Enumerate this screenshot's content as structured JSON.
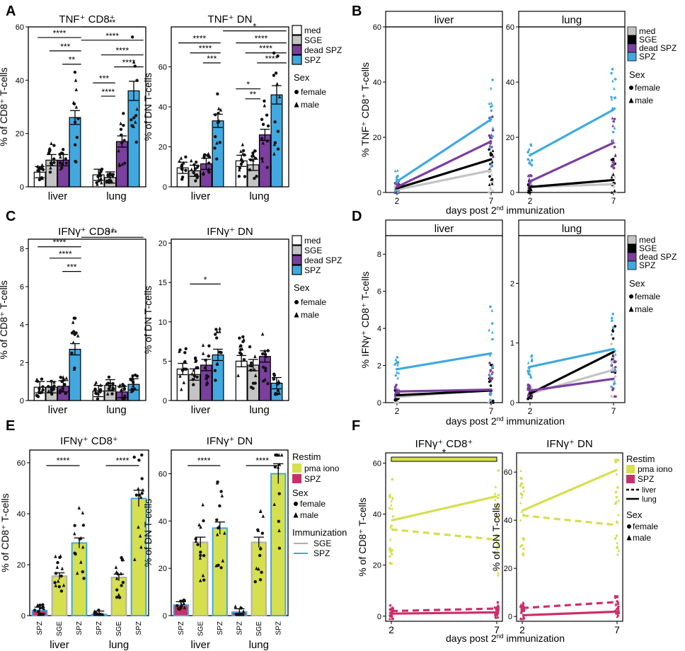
{
  "panel_letters": [
    "A",
    "B",
    "C",
    "D",
    "E",
    "F"
  ],
  "legend_groups": {
    "groups_title": "",
    "group_labels": [
      "med",
      "SGE",
      "dead SPZ",
      "SPZ"
    ],
    "group_colors": [
      "#ffffff",
      "#c4c4c4",
      "#7b3f9e",
      "#41a9e0"
    ],
    "line_colors": [
      "#c4c4c4",
      "#000000",
      "#7b3f9e",
      "#41a9e0"
    ],
    "sex_title": "Sex",
    "sex_labels": [
      "female",
      "male"
    ],
    "restim_title": "Restim",
    "restim_labels": [
      "pma iono",
      "SPZ"
    ],
    "restim_colors": [
      "#d6df4e",
      "#cc2e6b"
    ],
    "immunization_title": "Immunization",
    "immunization_labels": [
      "SGE",
      "SPZ"
    ],
    "immunization_colors": [
      "#b0b0b0",
      "#41a9e0"
    ],
    "organ_line_labels": [
      "liver",
      "lung"
    ]
  },
  "x_axis_common": {
    "tissues": [
      "liver",
      "lung"
    ],
    "days_label": "days post 2nd immunization",
    "days_label_parts": [
      "days post 2",
      "nd",
      " immunization"
    ],
    "days": [
      "2",
      "7"
    ],
    "e_categories": [
      "SPZ",
      "SGE",
      "SPZ",
      "SPZ",
      "SGE",
      "SPZ"
    ]
  },
  "chart_data": [
    {
      "panel": "A",
      "type": "bar",
      "title": "TNF⁺ CD8⁺",
      "ylabel": "% of CD8⁺ T-cells",
      "ylim": [
        0,
        60
      ],
      "yticks": [
        0,
        20,
        40,
        60
      ],
      "categories": [
        "liver",
        "lung"
      ],
      "series": [
        {
          "name": "med",
          "values": [
            5.5,
            4.5
          ]
        },
        {
          "name": "SGE",
          "values": [
            10,
            3.5
          ]
        },
        {
          "name": "dead SPZ",
          "values": [
            10,
            17
          ]
        },
        {
          "name": "SPZ",
          "values": [
            26,
            36
          ]
        }
      ],
      "significance": [
        "****",
        "***",
        "**",
        "**",
        "****",
        "****",
        "****",
        "***",
        "****"
      ]
    },
    {
      "panel": "A",
      "type": "bar",
      "title": "TNF⁺ DN",
      "ylabel": "% of DN T-cells",
      "ylim": [
        0,
        80
      ],
      "yticks": [
        0,
        20,
        40,
        60
      ],
      "categories": [
        "liver",
        "lung"
      ],
      "series": [
        {
          "name": "med",
          "values": [
            9.5,
            13
          ]
        },
        {
          "name": "SGE",
          "values": [
            8,
            11
          ]
        },
        {
          "name": "dead SPZ",
          "values": [
            11.5,
            26
          ]
        },
        {
          "name": "SPZ",
          "values": [
            33,
            46
          ]
        }
      ],
      "significance": [
        "****",
        "****",
        "***",
        "*",
        "****",
        "****",
        "****",
        "*",
        "**"
      ]
    },
    {
      "panel": "B",
      "type": "line",
      "facets": [
        "liver",
        "lung"
      ],
      "ylabel": "% TNF⁺ CD8⁺ T-cells",
      "ylim": [
        0,
        60
      ],
      "yticks": [
        0,
        20,
        40,
        60
      ],
      "x": [
        2,
        7
      ],
      "xlabel": "days post 2nd immunization",
      "facet_series": [
        [
          {
            "name": "med",
            "values": [
              1,
              8
            ]
          },
          {
            "name": "SGE",
            "values": [
              1.5,
              12
            ]
          },
          {
            "name": "dead SPZ",
            "values": [
              2,
              18.5
            ]
          },
          {
            "name": "SPZ",
            "values": [
              4,
              26.5
            ]
          }
        ],
        [
          {
            "name": "med",
            "values": [
              2,
              3
            ]
          },
          {
            "name": "SGE",
            "values": [
              2,
              4.5
            ]
          },
          {
            "name": "dead SPZ",
            "values": [
              4,
              18
            ]
          },
          {
            "name": "SPZ",
            "values": [
              13.5,
              30
            ]
          }
        ]
      ]
    },
    {
      "panel": "C",
      "type": "bar",
      "title": "IFNγ⁺ CD8⁺",
      "ylabel": "% of CD8⁺ T-cells",
      "ylim": [
        0,
        8.5
      ],
      "yticks": [
        0,
        2,
        4,
        6,
        8
      ],
      "categories": [
        "liver",
        "lung"
      ],
      "series": [
        {
          "name": "med",
          "values": [
            0.7,
            0.5
          ]
        },
        {
          "name": "SGE",
          "values": [
            0.7,
            0.8
          ]
        },
        {
          "name": "dead SPZ",
          "values": [
            0.75,
            0.45
          ]
        },
        {
          "name": "SPZ",
          "values": [
            2.7,
            0.85
          ]
        }
      ],
      "significance": [
        "****",
        "****",
        "***",
        "***"
      ]
    },
    {
      "panel": "C",
      "type": "bar",
      "title": "IFNγ⁺ DN",
      "ylabel": "% of DN T-cells",
      "ylim": [
        0,
        20.5
      ],
      "yticks": [
        0,
        5,
        10,
        15,
        20
      ],
      "categories": [
        "liver",
        "lung"
      ],
      "series": [
        {
          "name": "med",
          "values": [
            4,
            5
          ]
        },
        {
          "name": "SGE",
          "values": [
            3.3,
            4.5
          ]
        },
        {
          "name": "dead SPZ",
          "values": [
            4.5,
            5.6
          ]
        },
        {
          "name": "SPZ",
          "values": [
            5.8,
            2.2
          ]
        }
      ],
      "significance": [
        "*"
      ]
    },
    {
      "panel": "D",
      "type": "line",
      "facets": [
        "liver",
        "lung"
      ],
      "ylabel": "% IFNγ⁺ CD8⁺ T-cells",
      "x": [
        2,
        7
      ],
      "xlabel": "days post 2nd immunization",
      "facet_ylims": [
        [
          0,
          9
        ],
        [
          0,
          2.8
        ]
      ],
      "facet_yticks": [
        [
          0,
          2,
          4,
          6,
          8
        ],
        [
          0,
          1,
          2
        ]
      ],
      "facet_series": [
        [
          {
            "name": "med",
            "values": [
              0.3,
              0.7
            ]
          },
          {
            "name": "SGE",
            "values": [
              0.4,
              0.65
            ]
          },
          {
            "name": "dead SPZ",
            "values": [
              0.6,
              0.7
            ]
          },
          {
            "name": "SPZ",
            "values": [
              1.8,
              2.65
            ]
          }
        ],
        [
          {
            "name": "med",
            "values": [
              0.15,
              0.55
            ]
          },
          {
            "name": "SGE",
            "values": [
              0.15,
              0.85
            ]
          },
          {
            "name": "dead SPZ",
            "values": [
              0.2,
              0.4
            ]
          },
          {
            "name": "SPZ",
            "values": [
              0.6,
              0.9
            ]
          }
        ]
      ]
    },
    {
      "panel": "E",
      "type": "bar",
      "title": "IFNγ⁺ CD8⁺",
      "ylabel": "% of CD8⁺ T-cells",
      "ylim": [
        0,
        65
      ],
      "yticks": [
        0,
        20,
        40,
        60
      ],
      "categories": [
        "SPZ",
        "SGE",
        "SPZ",
        "SPZ",
        "SGE",
        "SPZ"
      ],
      "tissues": [
        "liver",
        "lung"
      ],
      "restim": [
        "SPZ",
        "pma iono",
        "pma iono",
        "SPZ",
        "pma iono",
        "pma iono"
      ],
      "values": [
        2,
        15.5,
        28.5,
        0.5,
        15,
        46
      ],
      "significance": [
        "****",
        "****"
      ]
    },
    {
      "panel": "E",
      "type": "bar",
      "title": "IFNγ⁺ DN",
      "ylabel": "% of DN T-cells",
      "ylim": [
        0,
        70
      ],
      "yticks": [
        0,
        20,
        40,
        60
      ],
      "categories": [
        "SPZ",
        "SGE",
        "SPZ",
        "SPZ",
        "SGE",
        "SPZ"
      ],
      "tissues": [
        "liver",
        "lung"
      ],
      "restim": [
        "SPZ",
        "pma iono",
        "pma iono",
        "SPZ",
        "pma iono",
        "pma iono"
      ],
      "values": [
        4.5,
        31,
        37,
        1.5,
        31,
        60
      ],
      "significance": [
        "****",
        "****"
      ]
    },
    {
      "panel": "F",
      "type": "line",
      "title": "IFNγ⁺ CD8⁺",
      "ylabel": "% of CD8⁺ T-cells",
      "ylim": [
        -2,
        64
      ],
      "yticks": [
        0,
        20,
        40,
        60
      ],
      "x": [
        2,
        7
      ],
      "xlabel": "days post 2nd immunization",
      "series": [
        {
          "name": "pma iono liver",
          "values": [
            34,
            30
          ]
        },
        {
          "name": "pma iono lung",
          "values": [
            37.5,
            47
          ]
        },
        {
          "name": "SPZ liver",
          "values": [
            2,
            3
          ]
        },
        {
          "name": "SPZ lung",
          "values": [
            1,
            1.5
          ]
        }
      ],
      "significance": [
        "*"
      ]
    },
    {
      "panel": "F",
      "type": "line",
      "title": "IFNγ⁺ DN",
      "ylabel": "% of DN T-cells",
      "ylim": [
        -2,
        68
      ],
      "yticks": [
        0,
        20,
        40,
        60
      ],
      "x": [
        2,
        7
      ],
      "xlabel": "days post 2nd immunization",
      "series": [
        {
          "name": "pma iono liver",
          "values": [
            42,
            38
          ]
        },
        {
          "name": "pma iono lung",
          "values": [
            44,
            61
          ]
        },
        {
          "name": "SPZ liver",
          "values": [
            3.5,
            6
          ]
        },
        {
          "name": "SPZ lung",
          "values": [
            0.5,
            2
          ]
        }
      ]
    }
  ]
}
